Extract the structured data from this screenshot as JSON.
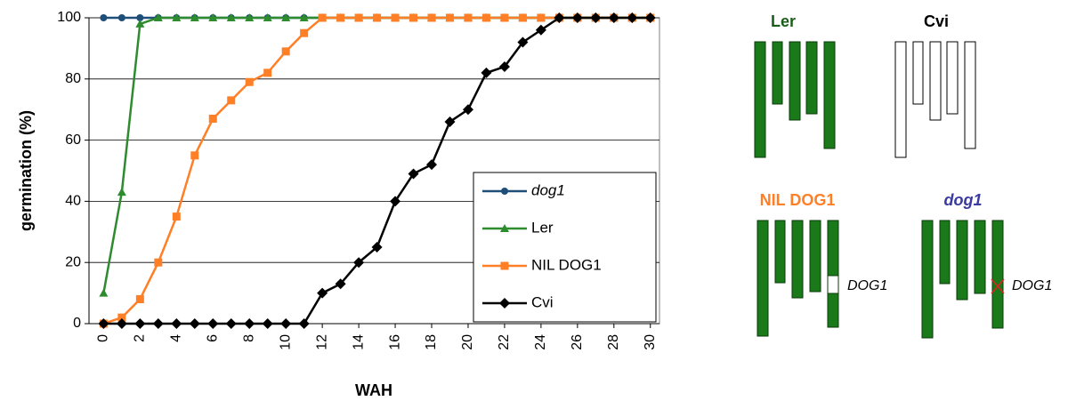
{
  "chart_data": {
    "type": "line",
    "y_label": "germination (%)",
    "x_label": "WAH",
    "x": [
      0,
      1,
      2,
      3,
      4,
      5,
      6,
      7,
      8,
      9,
      10,
      11,
      12,
      13,
      14,
      15,
      16,
      17,
      18,
      19,
      20,
      21,
      22,
      23,
      24,
      25,
      26,
      27,
      28,
      29,
      30
    ],
    "xlim": [
      -0.8,
      30.5
    ],
    "xticks": [
      0,
      2,
      4,
      6,
      8,
      10,
      12,
      14,
      16,
      18,
      20,
      22,
      24,
      26,
      28,
      30
    ],
    "ylim": [
      0,
      100
    ],
    "yticks": [
      0,
      20,
      40,
      60,
      80,
      100
    ],
    "grid": true,
    "legend": "lower right",
    "series": [
      {
        "name": "dog1",
        "color": "#1f4e79",
        "marker": "circle",
        "values": [
          100,
          100,
          100,
          100,
          100,
          100,
          100,
          100,
          100,
          100,
          100,
          100,
          100,
          100,
          100,
          100,
          100,
          100,
          100,
          100,
          100,
          100,
          100,
          100,
          100,
          100,
          100,
          100,
          100,
          100,
          100
        ]
      },
      {
        "name": "Ler",
        "color": "#2e8b2e",
        "marker": "triangle",
        "values": [
          10,
          43,
          98,
          100,
          100,
          100,
          100,
          100,
          100,
          100,
          100,
          100,
          100,
          100,
          100,
          100,
          100,
          100,
          100,
          100,
          100,
          100,
          100,
          100,
          100,
          100,
          100,
          100,
          100,
          100,
          100
        ]
      },
      {
        "name": "NIL DOG1",
        "color": "#ff7f27",
        "marker": "square",
        "values": [
          0,
          2,
          8,
          20,
          35,
          55,
          67,
          73,
          79,
          82,
          89,
          95,
          100,
          100,
          100,
          100,
          100,
          100,
          100,
          100,
          100,
          100,
          100,
          100,
          100,
          100,
          100,
          100,
          100,
          100,
          100
        ]
      },
      {
        "name": "Cvi",
        "color": "#000000",
        "marker": "diamond",
        "values": [
          0,
          0,
          0,
          0,
          0,
          0,
          0,
          0,
          0,
          0,
          0,
          0,
          10,
          13,
          20,
          25,
          40,
          49,
          52,
          66,
          70,
          82,
          84,
          92,
          96,
          100,
          100,
          100,
          100,
          100,
          100
        ]
      }
    ]
  },
  "diagram": {
    "panels": [
      {
        "label": "Ler"
      },
      {
        "label": "Cvi"
      },
      {
        "label": "NIL DOG1"
      },
      {
        "label": "dog1"
      }
    ],
    "gene_labels": [
      "DOG1",
      "DOG1"
    ]
  }
}
